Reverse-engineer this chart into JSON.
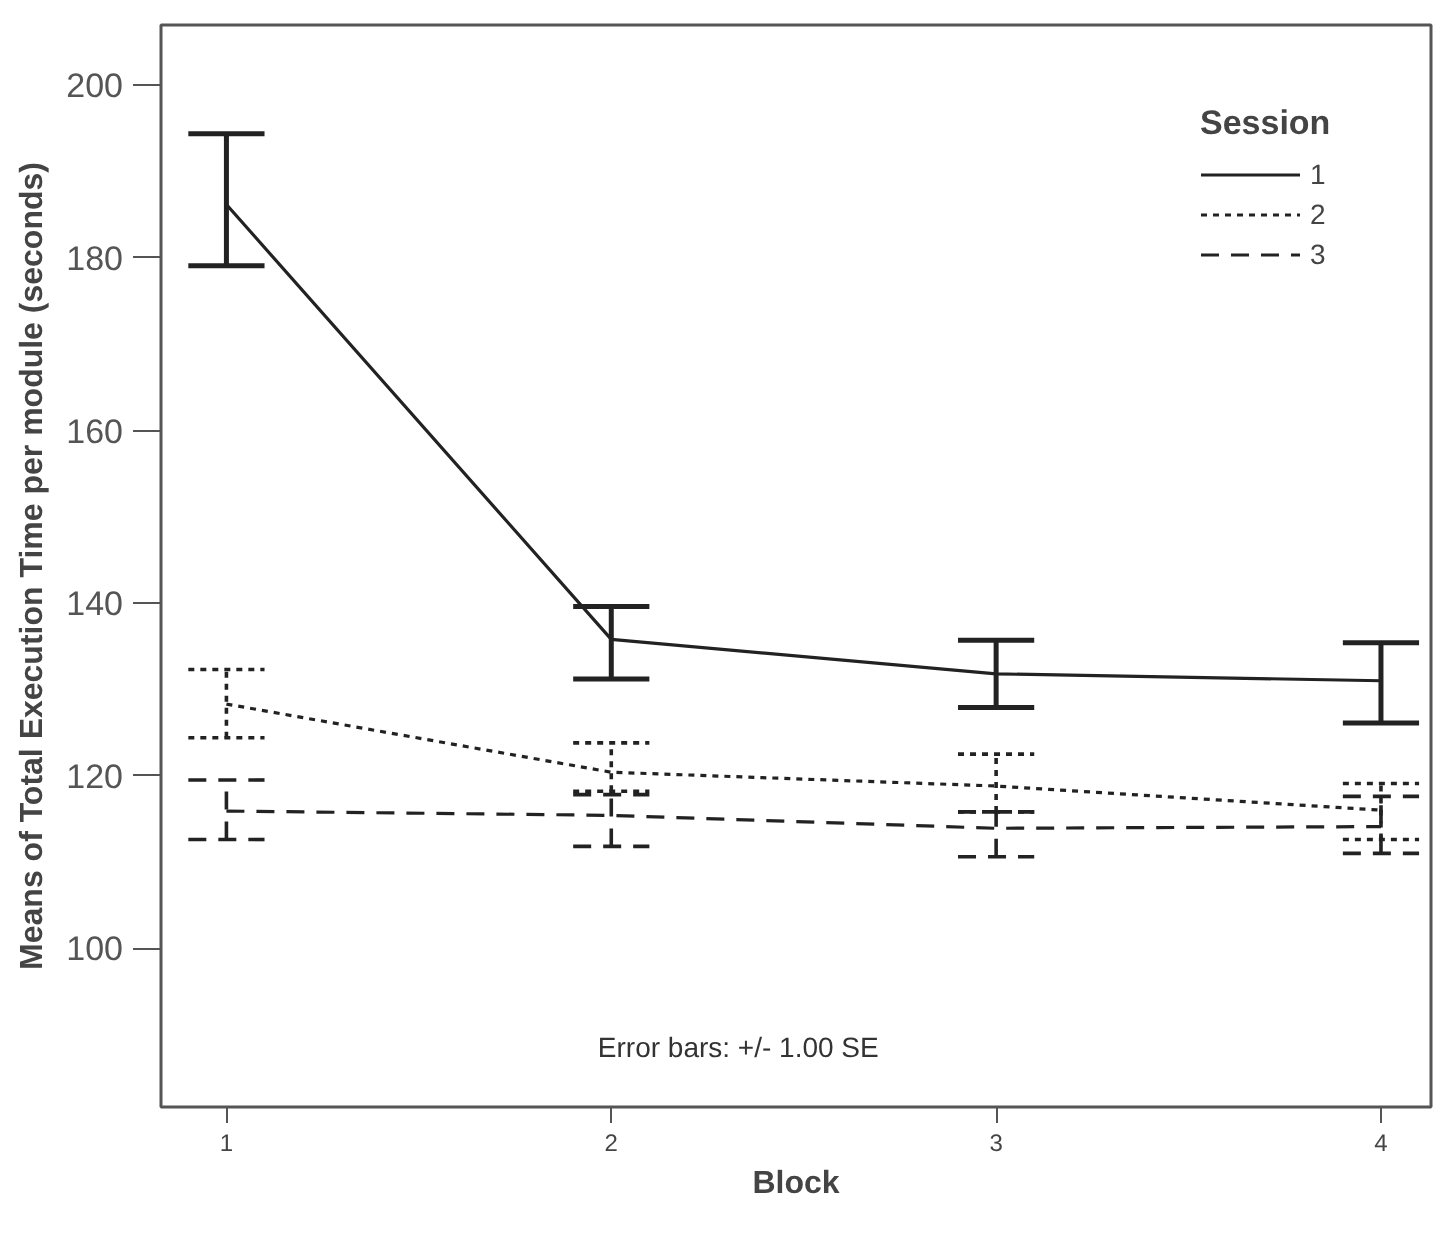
{
  "chart_data": {
    "type": "line",
    "xlabel": "Block",
    "ylabel": "Means of Total Execution Time per module (seconds)",
    "legend_title": "Session",
    "legend": "top right",
    "grid": false,
    "marker": "none",
    "x": [
      1,
      2,
      3,
      4
    ],
    "xlim": [
      0.83,
      4.13
    ],
    "xticks": [
      1,
      2,
      3,
      4
    ],
    "ylim": [
      81.6,
      207
    ],
    "yticks": [
      100,
      120,
      140,
      160,
      180,
      200
    ],
    "series": [
      {
        "name": "1",
        "color": "#222222",
        "line_style": "solid",
        "values": [
          186.2,
          135.8,
          131.8,
          131.0
        ],
        "errors": [
          [
            179.1,
            194.4
          ],
          [
            131.2,
            139.6
          ],
          [
            127.9,
            135.7
          ],
          [
            126.1,
            135.4
          ]
        ]
      },
      {
        "name": "2",
        "color": "#222222",
        "line_style": "dotted",
        "values": [
          128.3,
          120.4,
          118.8,
          116.0
        ],
        "errors": [
          [
            124.4,
            132.3
          ],
          [
            118.2,
            123.8
          ],
          [
            115.8,
            122.5
          ],
          [
            112.6,
            119.1
          ]
        ]
      },
      {
        "name": "3",
        "color": "#222222",
        "line_style": "dashed",
        "values": [
          115.9,
          115.4,
          113.9,
          114.1
        ],
        "errors": [
          [
            112.6,
            119.5
          ],
          [
            111.8,
            117.8
          ],
          [
            110.6,
            115.8
          ],
          [
            111.0,
            117.6
          ]
        ]
      }
    ],
    "annotations": [
      "Error bars: +/- 1.00 SE"
    ]
  }
}
